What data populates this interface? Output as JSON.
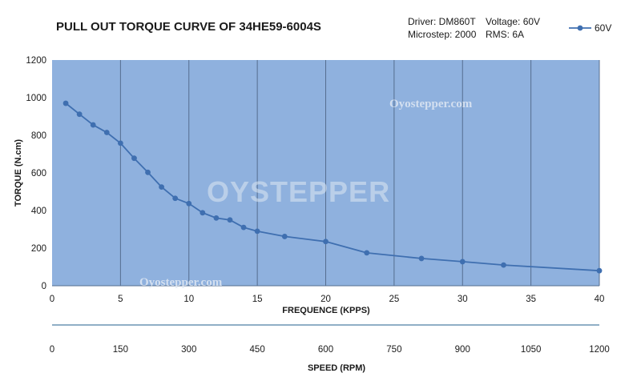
{
  "chart_data": {
    "type": "line",
    "title": "PULL OUT TORQUE CURVE OF 34HE59-6004S",
    "info": {
      "driver": "Driver: DM860T",
      "microstep": "Microstep: 2000",
      "voltage": "Voltage: 60V",
      "rms": "RMS: 6A"
    },
    "watermarks": [
      "Oyostepper.com",
      "OYSTEPPER",
      "Oyostepper.com"
    ],
    "xlabel": "FREQUENCE (KPPS)",
    "ylabel": "TORQUE (N.cm)",
    "x2label": "SPEED (RPM)",
    "xlim": [
      0,
      40
    ],
    "ylim": [
      0,
      1200
    ],
    "x_ticks": [
      0,
      5,
      10,
      15,
      20,
      25,
      30,
      35,
      40
    ],
    "y_ticks": [
      0,
      200,
      400,
      600,
      800,
      1000,
      1200
    ],
    "x2_ticks": [
      0,
      150,
      300,
      450,
      600,
      750,
      900,
      1050,
      1200
    ],
    "grid": "vertical",
    "legend_position": "top-right",
    "series": [
      {
        "name": "60V",
        "color": "#3f6fb0",
        "points": [
          [
            1,
            970
          ],
          [
            2,
            912
          ],
          [
            3,
            855
          ],
          [
            4,
            815
          ],
          [
            5,
            758
          ],
          [
            6,
            678
          ],
          [
            7,
            603
          ],
          [
            8,
            525
          ],
          [
            9,
            465
          ],
          [
            10,
            437
          ],
          [
            11,
            388
          ],
          [
            12,
            360
          ],
          [
            13,
            350
          ],
          [
            14,
            310
          ],
          [
            15,
            290
          ],
          [
            17,
            262
          ],
          [
            20,
            235
          ],
          [
            23,
            175
          ],
          [
            27,
            145
          ],
          [
            30,
            128
          ],
          [
            33,
            110
          ],
          [
            40,
            80
          ]
        ]
      }
    ],
    "colors": {
      "plot_bg": "#8fb1de",
      "grid": "#556e8f",
      "line": "#3f6fb0"
    }
  }
}
